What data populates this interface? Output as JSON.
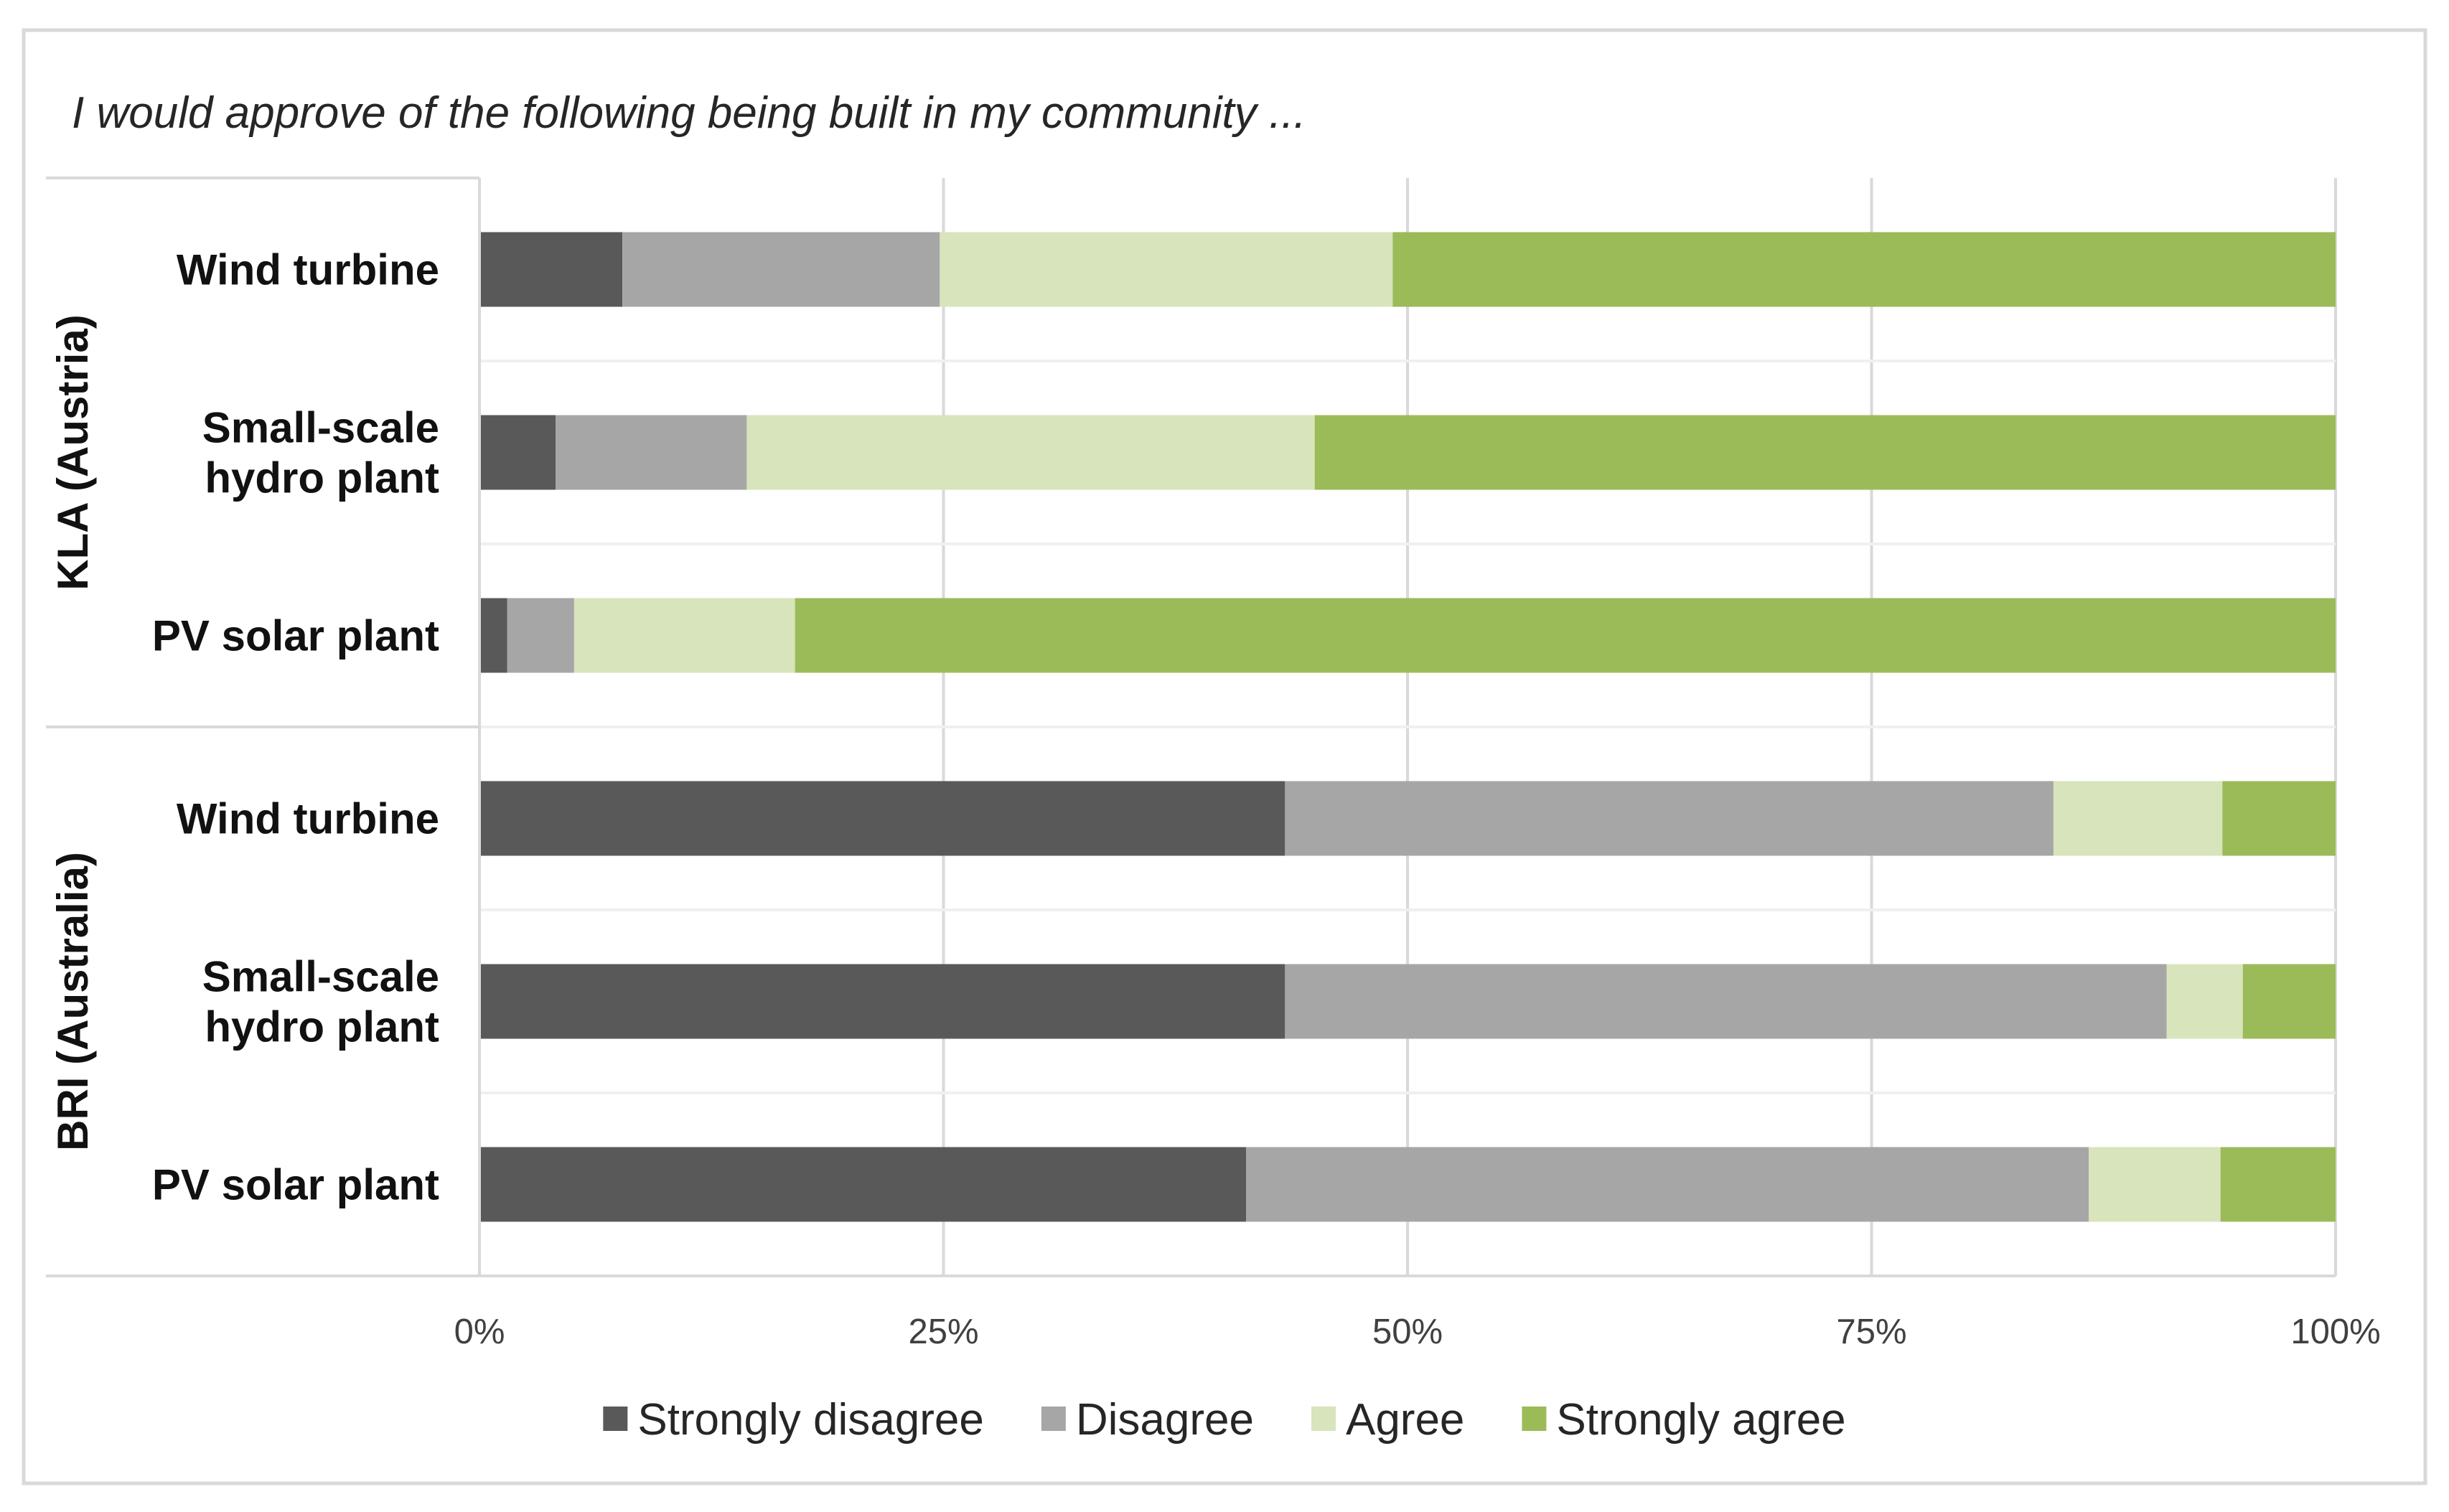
{
  "chart_data": {
    "type": "bar",
    "orientation": "horizontal",
    "stacked": "percent",
    "title": "I would approve of the following being built in my community ...",
    "xlim": [
      0,
      100
    ],
    "x_ticks": [
      "0%",
      "25%",
      "50%",
      "75%",
      "100%"
    ],
    "grid": true,
    "legend_position": "bottom",
    "groups": [
      {
        "name": "KLA (Austria)",
        "categories": [
          "Wind turbine",
          "Small-scale hydro plant",
          "PV solar plant"
        ],
        "category_lines": [
          [
            "Wind turbine"
          ],
          [
            "Small-scale",
            "hydro plant"
          ],
          [
            "PV solar plant"
          ]
        ]
      },
      {
        "name": "BRI (Australia)",
        "categories": [
          "Wind turbine",
          "Small-scale hydro plant",
          "PV solar plant"
        ],
        "category_lines": [
          [
            "Wind turbine"
          ],
          [
            "Small-scale",
            "hydro plant"
          ],
          [
            "PV solar plant"
          ]
        ]
      }
    ],
    "series": [
      {
        "name": "Strongly disagree",
        "color": "#595959",
        "values": [
          7.7,
          4.1,
          1.5,
          43.4,
          43.4,
          41.3
        ]
      },
      {
        "name": "Disagree",
        "color": "#a6a6a6",
        "values": [
          17.1,
          10.3,
          3.6,
          41.4,
          47.5,
          45.4
        ]
      },
      {
        "name": "Agree",
        "color": "#d8e4bc",
        "values": [
          24.4,
          30.6,
          11.9,
          9.1,
          4.1,
          7.1
        ]
      },
      {
        "name": "Strongly agree",
        "color": "#9bbb59",
        "values": [
          50.8,
          55.0,
          83.0,
          6.1,
          5.0,
          6.2
        ]
      }
    ]
  }
}
